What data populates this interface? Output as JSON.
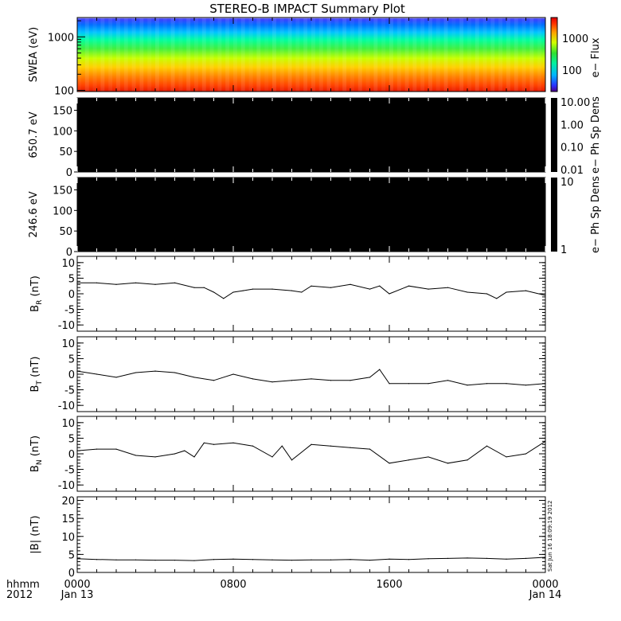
{
  "title": "STEREO-B IMPACT Summary Plot",
  "footer": {
    "label_top": "hhmm",
    "label_bottom": "2012",
    "ticks": [
      {
        "top": "0000",
        "bottom": "Jan 13"
      },
      {
        "top": "0800",
        "bottom": ""
      },
      {
        "top": "1600",
        "bottom": ""
      },
      {
        "top": "0000",
        "bottom": "Jan 14"
      }
    ]
  },
  "timestamp": "Sat Jun 16 18:09:19 2012",
  "chart_data": [
    {
      "type": "heatmap",
      "ylabel": "SWEA (eV)",
      "yscale": "log",
      "ylim": [
        95,
        2300
      ],
      "yticks": [
        "100",
        "1000"
      ],
      "colorbar_label": "e− Flux",
      "colorbar_scale": "log",
      "colorbar_ticks": [
        "100",
        "1000"
      ],
      "colormap": "rainbow (blue high energy, red low energy)"
    },
    {
      "type": "heatmap",
      "ylabel": "650.7 eV",
      "ylim": [
        0,
        180
      ],
      "yticks": [
        "0",
        "50",
        "100",
        "150"
      ],
      "colorbar_label": "e− Ph Sp Dens",
      "colorbar_scale": "log",
      "colorbar_ticks": [
        "10.00",
        "1.00",
        "0.10",
        "0.01"
      ],
      "fill": "#000000"
    },
    {
      "type": "heatmap",
      "ylabel": "246.6 eV",
      "ylim": [
        0,
        180
      ],
      "yticks": [
        "0",
        "50",
        "100",
        "150"
      ],
      "colorbar_label": "e− Ph Sp Dens",
      "colorbar_scale": "log",
      "colorbar_ticks": [
        "10",
        "1"
      ],
      "fill": "#000000"
    },
    {
      "type": "line",
      "ylabel": "B_R (nT)",
      "ylabel_main": "B",
      "ylabel_sub": "R",
      "ylabel_unit": "(nT)",
      "ylim": [
        -12,
        12
      ],
      "yticks": [
        -10,
        -5,
        0,
        5,
        10
      ],
      "x_hours": [
        0,
        1,
        2,
        3,
        4,
        5,
        6,
        6.5,
        7,
        7.5,
        8,
        8.5,
        9,
        10,
        11,
        11.5,
        12,
        13,
        14,
        15,
        15.5,
        16,
        17,
        18,
        19,
        20,
        21,
        21.5,
        22,
        23,
        24
      ],
      "values": [
        3.5,
        3.5,
        3.0,
        3.5,
        3.0,
        3.5,
        2.0,
        2.0,
        0.5,
        -1.5,
        0.5,
        1.0,
        1.5,
        1.5,
        1.0,
        0.5,
        2.5,
        2.0,
        3.0,
        1.5,
        2.5,
        0.0,
        2.5,
        1.5,
        2.0,
        0.5,
        0.0,
        -1.5,
        0.5,
        1.0,
        -0.5
      ]
    },
    {
      "type": "line",
      "ylabel": "B_T (nT)",
      "ylabel_main": "B",
      "ylabel_sub": "T",
      "ylabel_unit": "(nT)",
      "ylim": [
        -12,
        12
      ],
      "yticks": [
        -10,
        -5,
        0,
        5,
        10
      ],
      "x_hours": [
        0,
        1,
        2,
        3,
        4,
        5,
        6,
        7,
        8,
        9,
        10,
        11,
        12,
        13,
        14,
        15,
        15.5,
        16,
        17,
        18,
        19,
        20,
        21,
        22,
        23,
        24
      ],
      "values": [
        1.0,
        0.0,
        -1.0,
        0.5,
        1.0,
        0.5,
        -1.0,
        -2.0,
        0.0,
        -1.5,
        -2.5,
        -2.0,
        -1.5,
        -2.0,
        -2.0,
        -1.0,
        1.5,
        -3.0,
        -3.0,
        -3.0,
        -2.0,
        -3.5,
        -3.0,
        -3.0,
        -3.5,
        -3.0
      ]
    },
    {
      "type": "line",
      "ylabel": "B_N (nT)",
      "ylabel_main": "B",
      "ylabel_sub": "N",
      "ylabel_unit": "(nT)",
      "ylim": [
        -12,
        12
      ],
      "yticks": [
        -10,
        -5,
        0,
        5,
        10
      ],
      "x_hours": [
        0,
        1,
        2,
        3,
        4,
        5,
        5.5,
        6,
        6.5,
        7,
        8,
        9,
        10,
        10.5,
        11,
        12,
        13,
        14,
        15,
        16,
        17,
        18,
        19,
        20,
        21,
        22,
        23,
        24
      ],
      "values": [
        1.0,
        1.5,
        1.5,
        -0.5,
        -1.0,
        0.0,
        1.0,
        -1.0,
        3.5,
        3.0,
        3.5,
        2.5,
        -1.0,
        2.5,
        -2.0,
        3.0,
        2.5,
        2.0,
        1.5,
        -3.0,
        -2.0,
        -1.0,
        -3.0,
        -2.0,
        2.5,
        -1.0,
        0.0,
        4.0
      ]
    },
    {
      "type": "line",
      "ylabel": "|B| (nT)",
      "ylabel_main": "|B|",
      "ylabel_sub": "",
      "ylabel_unit": "(nT)",
      "ylim": [
        0,
        21
      ],
      "yticks": [
        0,
        5,
        10,
        15,
        20
      ],
      "x_hours": [
        0,
        1,
        2,
        3,
        4,
        5,
        6,
        7,
        8,
        9,
        10,
        11,
        12,
        13,
        14,
        15,
        16,
        17,
        18,
        19,
        20,
        21,
        22,
        23,
        24
      ],
      "values": [
        3.8,
        3.6,
        3.5,
        3.5,
        3.4,
        3.4,
        3.3,
        3.6,
        3.7,
        3.6,
        3.5,
        3.4,
        3.5,
        3.5,
        3.6,
        3.4,
        3.7,
        3.6,
        3.8,
        3.9,
        4.0,
        3.9,
        3.7,
        3.9,
        4.2
      ]
    }
  ]
}
